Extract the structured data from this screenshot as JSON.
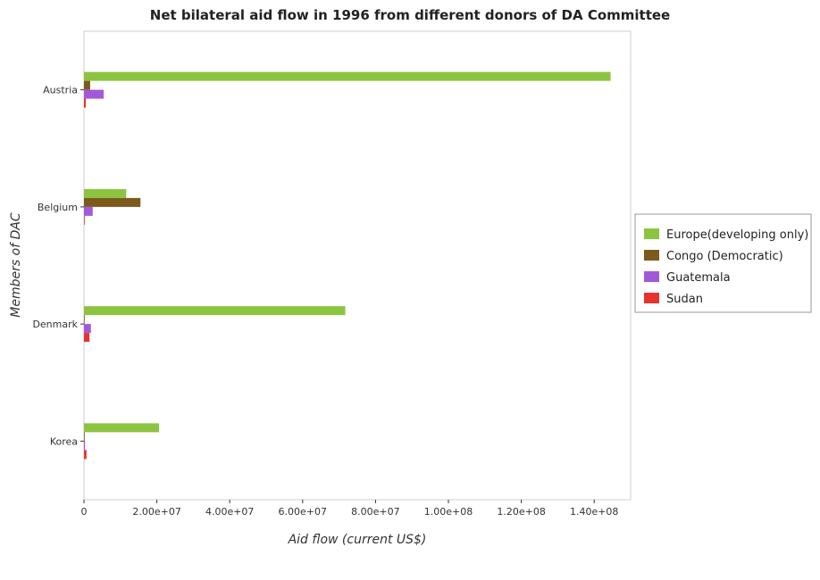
{
  "title": "Net bilateral aid flow in 1996 from different donors of DA Committee",
  "chart_data": {
    "type": "bar",
    "orientation": "horizontal",
    "title": "Net bilateral aid flow in 1996 from different donors of DA Committee",
    "xlabel": "Aid flow (current US$)",
    "ylabel": "Members of DAC",
    "categories": [
      "Austria",
      "Belgium",
      "Denmark",
      "Korea"
    ],
    "xlim": [
      0,
      150000000
    ],
    "xticks": [
      0,
      20000000,
      40000000,
      60000000,
      80000000,
      100000000,
      120000000,
      140000000
    ],
    "xtick_labels": [
      "0",
      "2.00e+07",
      "4.00e+07",
      "6.00e+07",
      "8.00e+07",
      "1.00e+08",
      "1.20e+08",
      "1.40e+08"
    ],
    "series": [
      {
        "name": "Europe(developing only)",
        "color": "#8cc43f",
        "values": [
          144500000,
          11600000,
          71700000,
          20600000
        ]
      },
      {
        "name": "Congo (Democratic)",
        "color": "#7b5a1c",
        "values": [
          1700000,
          15500000,
          100000,
          200000
        ]
      },
      {
        "name": "Guatemala",
        "color": "#a259d9",
        "values": [
          5400000,
          2400000,
          1900000,
          300000
        ]
      },
      {
        "name": "Sudan",
        "color": "#e8322e",
        "values": [
          500000,
          100000,
          1500000,
          700000
        ]
      }
    ],
    "grid": false,
    "legend_position": "right"
  }
}
